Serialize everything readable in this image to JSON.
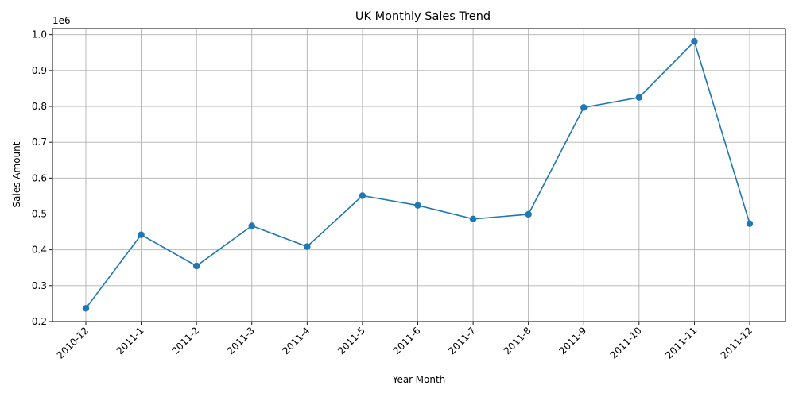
{
  "chart_data": {
    "type": "line",
    "title": "UK Monthly Sales Trend",
    "xlabel": "Year-Month",
    "ylabel": "Sales Amount",
    "y_offset_label": "1e6",
    "categories": [
      "2010-12",
      "2011-1",
      "2011-2",
      "2011-3",
      "2011-4",
      "2011-5",
      "2011-6",
      "2011-7",
      "2011-8",
      "2011-9",
      "2011-10",
      "2011-11",
      "2011-12"
    ],
    "series": [
      {
        "values": [
          0.237,
          0.442,
          0.355,
          0.467,
          0.409,
          0.551,
          0.524,
          0.486,
          0.499,
          0.797,
          0.825,
          0.981,
          0.473
        ],
        "color": "#1f77b4",
        "marker": "circle"
      }
    ],
    "yticks": [
      "0.2",
      "0.3",
      "0.4",
      "0.5",
      "0.6",
      "0.7",
      "0.8",
      "0.9",
      "1.0"
    ],
    "ylim": [
      0.2,
      1.017
    ],
    "grid": true,
    "x_tick_rotation_deg": 45
  }
}
